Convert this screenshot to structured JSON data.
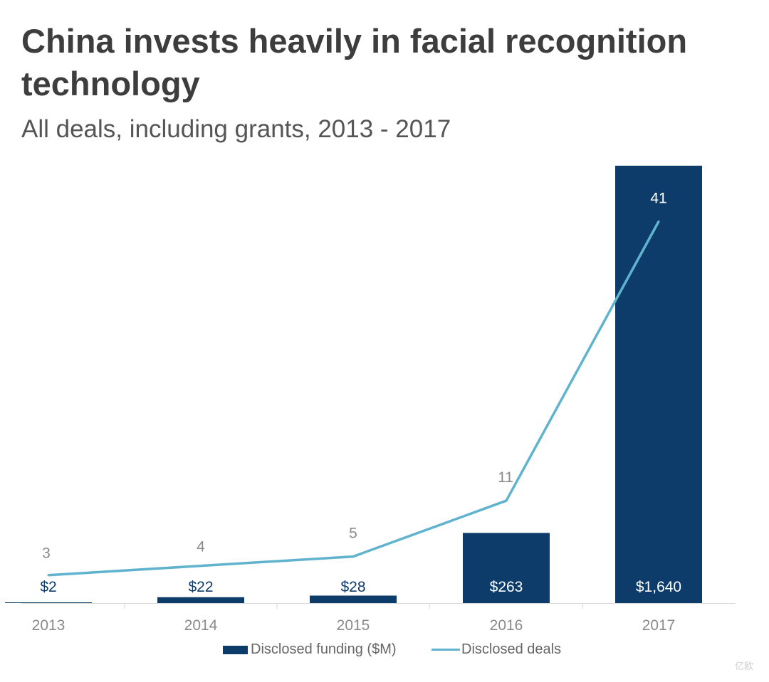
{
  "chart_data": {
    "type": "bar",
    "title": "China invests heavily in facial recognition technology",
    "subtitle": "All deals, including grants, 2013 - 2017",
    "categories": [
      "2013",
      "2014",
      "2015",
      "2016",
      "2017"
    ],
    "series": [
      {
        "name": "Disclosed funding ($M)",
        "type": "bar",
        "color": "#0d3c6b",
        "values": [
          2,
          22,
          28,
          263,
          1640
        ],
        "labels": [
          "$2",
          "$22",
          "$28",
          "$263",
          "$1,640"
        ],
        "ylim": [
          0,
          1640
        ]
      },
      {
        "name": "Disclosed deals",
        "type": "line",
        "color": "#5fb3ce",
        "values": [
          3,
          4,
          5,
          11,
          41
        ],
        "labels": [
          "3",
          "4",
          "5",
          "11",
          "41"
        ],
        "ylim": [
          0,
          47
        ]
      }
    ],
    "xlabel": "",
    "ylabel": "",
    "grid": false,
    "legend": "bottom-center"
  },
  "watermark": "亿欧"
}
